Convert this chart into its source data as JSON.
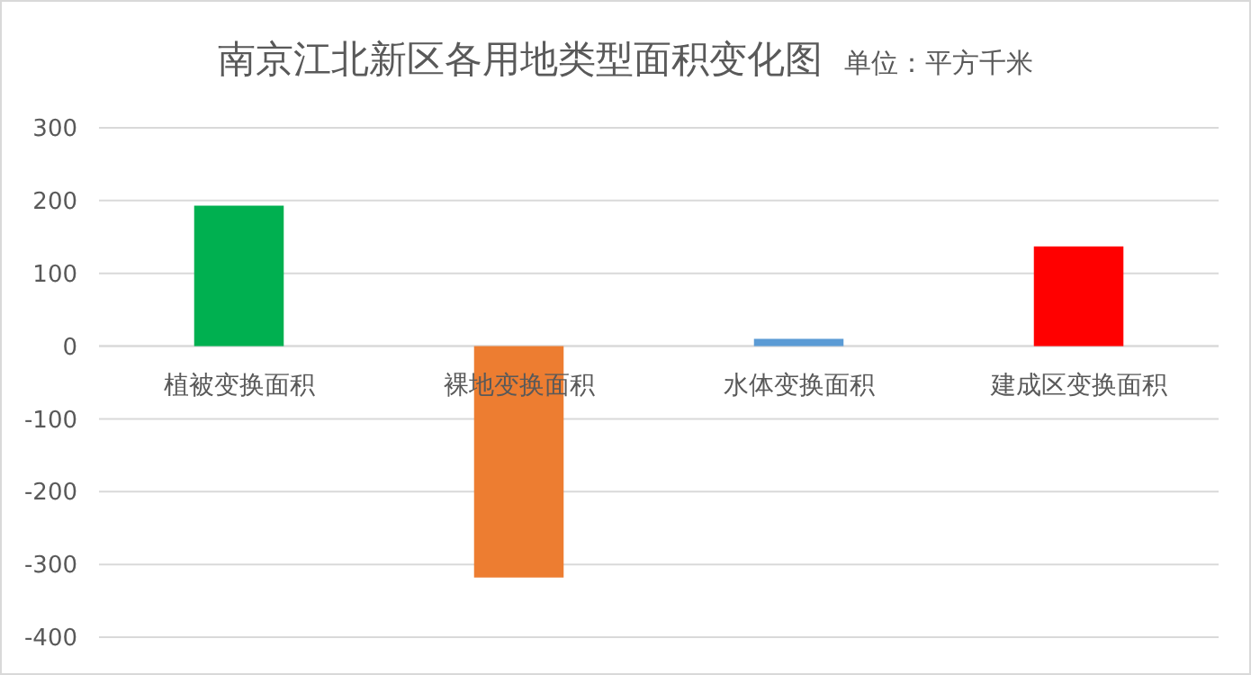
{
  "chart_data": {
    "type": "bar",
    "title": "南京江北新区各用地类型面积变化图",
    "subtitle": "单位：平方千米",
    "categories": [
      "植被变换面积",
      "裸地变换面积",
      "水体变换面积",
      "建成区变换面积"
    ],
    "values": [
      193,
      -318,
      10,
      137
    ],
    "colors": [
      "#00b050",
      "#ed7d31",
      "#5b9bd5",
      "#ff0000"
    ],
    "ylim": [
      -400,
      300
    ],
    "yticks": [
      -400,
      -300,
      -200,
      -100,
      0,
      100,
      200,
      300
    ],
    "grid": "y"
  }
}
